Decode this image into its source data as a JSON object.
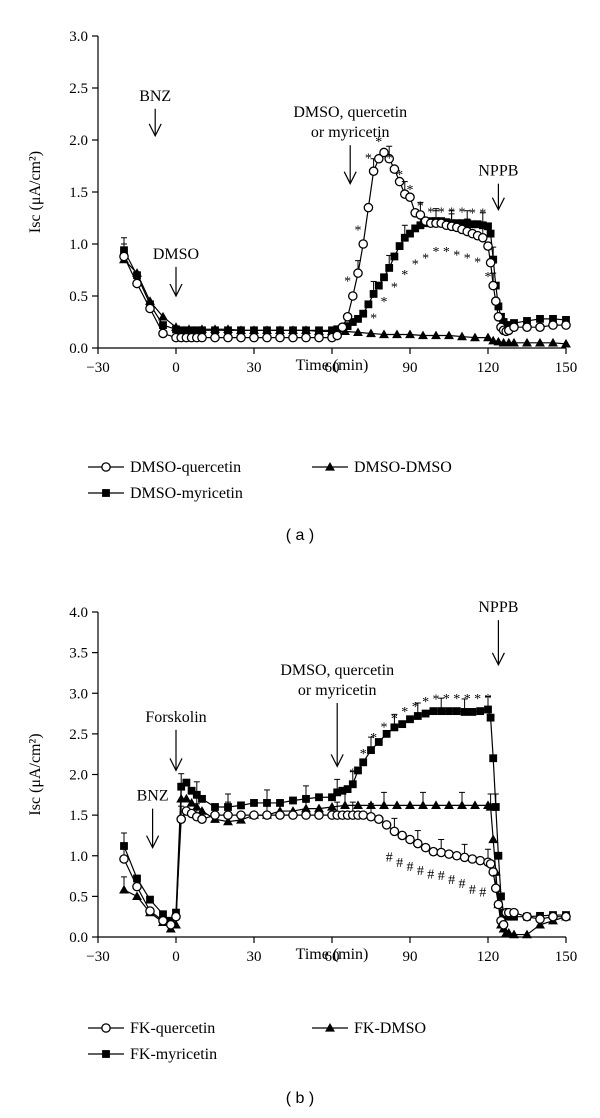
{
  "chart_data": [
    {
      "type": "line",
      "panel_label": "( a )",
      "xlabel": "Time (min)",
      "ylabel": "Isc (μA/cm²)",
      "xlim": [
        -30,
        150
      ],
      "ylim": [
        0,
        3
      ],
      "xticks": [
        -30,
        0,
        30,
        60,
        90,
        120,
        150
      ],
      "xtick_labels": [
        "−30",
        "0",
        "30",
        "60",
        "90",
        "120",
        "150"
      ],
      "yticks": [
        0,
        0.5,
        1,
        1.5,
        2,
        2.5,
        3
      ],
      "ytick_labels": [
        "0.0",
        "0.5",
        "1.0",
        "1.5",
        "2.0",
        "2.5",
        "3.0"
      ],
      "annotations": [
        {
          "lines": [
            "BNZ"
          ],
          "x": -8,
          "arrow_from": 2.3,
          "arrow_to": 2.04
        },
        {
          "lines": [
            "DMSO"
          ],
          "x": 0,
          "arrow_from": 0.78,
          "arrow_to": 0.5
        },
        {
          "lines": [
            "DMSO, quercetin",
            "or myricetin"
          ],
          "x": 67,
          "arrow_from": 1.95,
          "arrow_to": 1.58
        },
        {
          "lines": [
            "NPPB"
          ],
          "x": 124,
          "arrow_from": 1.58,
          "arrow_to": 1.33
        }
      ],
      "legend": [
        {
          "label": "DMSO-quercetin",
          "marker": "circle-open"
        },
        {
          "label": "DMSO-myricetin",
          "marker": "square-filled"
        },
        {
          "label": "DMSO-DMSO",
          "marker": "triangle-filled"
        }
      ],
      "legend_position": "bottom",
      "series": [
        {
          "marker": "circle-open",
          "x": [
            -20,
            -15,
            -10,
            -5,
            0,
            2,
            4,
            6,
            8,
            10,
            15,
            20,
            25,
            30,
            35,
            40,
            45,
            50,
            55,
            60,
            62,
            64,
            66,
            68,
            70,
            72,
            74,
            76,
            78,
            80,
            82,
            84,
            86,
            88,
            90,
            92,
            94,
            96,
            98,
            100,
            102,
            104,
            106,
            108,
            110,
            112,
            114,
            116,
            118,
            120,
            121,
            122,
            123,
            124,
            125,
            126,
            127,
            128,
            130,
            135,
            140,
            145,
            150
          ],
          "y": [
            0.88,
            0.62,
            0.38,
            0.14,
            0.1,
            0.1,
            0.1,
            0.1,
            0.1,
            0.1,
            0.1,
            0.1,
            0.1,
            0.1,
            0.1,
            0.1,
            0.1,
            0.1,
            0.1,
            0.1,
            0.12,
            0.2,
            0.3,
            0.5,
            0.72,
            1.0,
            1.35,
            1.7,
            1.82,
            1.88,
            1.82,
            1.72,
            1.6,
            1.48,
            1.45,
            1.3,
            1.28,
            1.22,
            1.2,
            1.2,
            1.2,
            1.18,
            1.17,
            1.16,
            1.14,
            1.12,
            1.1,
            1.08,
            1.06,
            0.98,
            0.82,
            0.6,
            0.45,
            0.3,
            0.2,
            0.17,
            0.16,
            0.17,
            0.2,
            0.2,
            0.2,
            0.22,
            0.22
          ]
        },
        {
          "marker": "square-filled",
          "x": [
            -20,
            -15,
            -10,
            -5,
            0,
            2,
            4,
            6,
            8,
            10,
            15,
            20,
            25,
            30,
            35,
            40,
            45,
            50,
            55,
            60,
            62,
            64,
            66,
            68,
            70,
            72,
            74,
            76,
            78,
            80,
            82,
            84,
            86,
            88,
            90,
            92,
            94,
            96,
            98,
            100,
            102,
            104,
            106,
            108,
            110,
            112,
            114,
            116,
            118,
            120,
            121,
            122,
            123,
            124,
            125,
            126,
            127,
            128,
            130,
            135,
            140,
            145,
            150
          ],
          "y": [
            0.94,
            0.7,
            0.42,
            0.22,
            0.18,
            0.17,
            0.17,
            0.17,
            0.17,
            0.17,
            0.17,
            0.17,
            0.17,
            0.17,
            0.17,
            0.17,
            0.17,
            0.17,
            0.17,
            0.17,
            0.18,
            0.19,
            0.21,
            0.25,
            0.28,
            0.33,
            0.42,
            0.52,
            0.6,
            0.68,
            0.77,
            0.88,
            0.98,
            1.06,
            1.1,
            1.15,
            1.18,
            1.2,
            1.22,
            1.22,
            1.22,
            1.21,
            1.2,
            1.2,
            1.2,
            1.2,
            1.19,
            1.19,
            1.18,
            1.17,
            1.1,
            0.85,
            0.6,
            0.4,
            0.3,
            0.25,
            0.22,
            0.22,
            0.24,
            0.26,
            0.28,
            0.28,
            0.27
          ]
        },
        {
          "marker": "triangle-filled",
          "x": [
            -20,
            -15,
            -10,
            -5,
            0,
            5,
            10,
            15,
            20,
            25,
            30,
            35,
            40,
            45,
            50,
            55,
            60,
            65,
            70,
            75,
            80,
            85,
            90,
            95,
            100,
            105,
            110,
            115,
            120,
            122,
            124,
            126,
            128,
            130,
            135,
            140,
            145,
            150
          ],
          "y": [
            0.85,
            0.72,
            0.45,
            0.3,
            0.2,
            0.18,
            0.18,
            0.18,
            0.18,
            0.17,
            0.17,
            0.17,
            0.17,
            0.17,
            0.17,
            0.16,
            0.16,
            0.16,
            0.15,
            0.14,
            0.13,
            0.13,
            0.13,
            0.12,
            0.12,
            0.12,
            0.11,
            0.1,
            0.1,
            0.07,
            0.06,
            0.05,
            0.05,
            0.05,
            0.05,
            0.05,
            0.05,
            0.04
          ]
        }
      ],
      "marks": [
        {
          "text": "*",
          "x": 66,
          "y": 0.68
        },
        {
          "text": "*",
          "x": 70,
          "y": 1.17
        },
        {
          "text": "*",
          "x": 74,
          "y": 1.86
        },
        {
          "text": "*",
          "x": 78,
          "y": 2.02
        },
        {
          "text": "*",
          "x": 82,
          "y": 1.86
        },
        {
          "text": "*",
          "x": 86,
          "y": 1.7
        },
        {
          "text": "*",
          "x": 90,
          "y": 1.56
        },
        {
          "text": "*",
          "x": 94,
          "y": 1.4
        },
        {
          "text": "*",
          "x": 98,
          "y": 1.34
        },
        {
          "text": "*",
          "x": 102,
          "y": 1.34
        },
        {
          "text": "*",
          "x": 106,
          "y": 1.34
        },
        {
          "text": "*",
          "x": 110,
          "y": 1.34
        },
        {
          "text": "*",
          "x": 114,
          "y": 1.33
        },
        {
          "text": "*",
          "x": 118,
          "y": 1.33
        },
        {
          "text": "*",
          "x": 76,
          "y": 0.32
        },
        {
          "text": "*",
          "x": 80,
          "y": 0.48
        },
        {
          "text": "*",
          "x": 84,
          "y": 0.62
        },
        {
          "text": "*",
          "x": 88,
          "y": 0.74
        },
        {
          "text": "*",
          "x": 92,
          "y": 0.84
        },
        {
          "text": "*",
          "x": 96,
          "y": 0.9
        },
        {
          "text": "*",
          "x": 100,
          "y": 0.96
        },
        {
          "text": "*",
          "x": 104,
          "y": 0.96
        },
        {
          "text": "*",
          "x": 108,
          "y": 0.93
        },
        {
          "text": "*",
          "x": 112,
          "y": 0.9
        },
        {
          "text": "*",
          "x": 116,
          "y": 0.86
        },
        {
          "text": "*",
          "x": 120,
          "y": 0.72
        }
      ]
    },
    {
      "type": "line",
      "panel_label": "( b )",
      "xlabel": "Time (min)",
      "ylabel": "Isc (μA/cm²)",
      "xlim": [
        -30,
        150
      ],
      "ylim": [
        0,
        4
      ],
      "xticks": [
        -30,
        0,
        30,
        60,
        90,
        120,
        150
      ],
      "xtick_labels": [
        "−30",
        "0",
        "30",
        "60",
        "90",
        "120",
        "150"
      ],
      "yticks": [
        0,
        0.5,
        1,
        1.5,
        2,
        2.5,
        3,
        3.5,
        4
      ],
      "ytick_labels": [
        "0.0",
        "0.5",
        "1.0",
        "1.5",
        "2.0",
        "2.5",
        "3.0",
        "3.5",
        "4.0"
      ],
      "annotations": [
        {
          "lines": [
            "Forskolin"
          ],
          "x": 0,
          "arrow_from": 2.55,
          "arrow_to": 2.05
        },
        {
          "lines": [
            "BNZ"
          ],
          "x": -9,
          "arrow_from": 1.58,
          "arrow_to": 1.1
        },
        {
          "lines": [
            "DMSO, quercetin",
            "or myricetin"
          ],
          "x": 62,
          "arrow_from": 2.88,
          "arrow_to": 2.1
        },
        {
          "lines": [
            "NPPB"
          ],
          "x": 124,
          "arrow_from": 3.9,
          "arrow_to": 3.35
        }
      ],
      "legend": [
        {
          "label": "FK-quercetin",
          "marker": "circle-open"
        },
        {
          "label": "FK-myricetin",
          "marker": "square-filled"
        },
        {
          "label": "FK-DMSO",
          "marker": "triangle-filled"
        }
      ],
      "legend_position": "bottom",
      "series": [
        {
          "marker": "circle-open",
          "x": [
            -20,
            -15,
            -10,
            -5,
            -2,
            0,
            2,
            4,
            6,
            8,
            10,
            15,
            20,
            25,
            30,
            35,
            40,
            45,
            50,
            55,
            60,
            62,
            64,
            66,
            68,
            70,
            72,
            75,
            78,
            81,
            84,
            87,
            90,
            93,
            96,
            99,
            102,
            105,
            108,
            111,
            114,
            117,
            120,
            121,
            122,
            123,
            124,
            125,
            126,
            127,
            128,
            130,
            135,
            140,
            145,
            150
          ],
          "y": [
            0.96,
            0.62,
            0.32,
            0.2,
            0.15,
            0.25,
            1.45,
            1.55,
            1.52,
            1.48,
            1.45,
            1.5,
            1.5,
            1.5,
            1.5,
            1.5,
            1.5,
            1.5,
            1.5,
            1.5,
            1.5,
            1.5,
            1.5,
            1.5,
            1.5,
            1.5,
            1.5,
            1.48,
            1.45,
            1.38,
            1.3,
            1.25,
            1.2,
            1.15,
            1.1,
            1.05,
            1.04,
            1.02,
            1.0,
            0.98,
            0.96,
            0.94,
            0.92,
            0.9,
            0.8,
            0.6,
            0.4,
            0.2,
            0.15,
            0.3,
            0.3,
            0.3,
            0.25,
            0.22,
            0.25,
            0.25
          ]
        },
        {
          "marker": "square-filled",
          "x": [
            -20,
            -15,
            -10,
            -5,
            -2,
            0,
            2,
            4,
            6,
            8,
            10,
            15,
            20,
            25,
            30,
            35,
            40,
            45,
            50,
            55,
            60,
            62,
            64,
            66,
            68,
            70,
            72,
            75,
            78,
            81,
            84,
            87,
            90,
            93,
            96,
            99,
            102,
            105,
            108,
            111,
            114,
            117,
            120,
            121,
            122,
            123,
            124,
            125,
            126,
            127,
            128,
            130,
            135,
            140,
            145,
            150
          ],
          "y": [
            1.12,
            0.72,
            0.46,
            0.28,
            0.2,
            0.3,
            1.85,
            1.9,
            1.8,
            1.75,
            1.7,
            1.6,
            1.6,
            1.62,
            1.65,
            1.65,
            1.65,
            1.68,
            1.7,
            1.72,
            1.72,
            1.78,
            1.8,
            1.82,
            1.88,
            2.05,
            2.15,
            2.3,
            2.4,
            2.5,
            2.58,
            2.62,
            2.68,
            2.72,
            2.75,
            2.78,
            2.78,
            2.78,
            2.78,
            2.77,
            2.77,
            2.78,
            2.8,
            2.7,
            2.2,
            1.6,
            1.0,
            0.5,
            0.3,
            0.28,
            0.25,
            0.25,
            0.25,
            0.26,
            0.27,
            0.27
          ]
        },
        {
          "marker": "triangle-filled",
          "x": [
            -20,
            -15,
            -10,
            -5,
            -2,
            0,
            2,
            4,
            6,
            8,
            10,
            15,
            20,
            25,
            30,
            35,
            40,
            45,
            50,
            55,
            60,
            65,
            70,
            75,
            80,
            85,
            90,
            95,
            100,
            105,
            110,
            115,
            120,
            121,
            122,
            123,
            124,
            125,
            126,
            127,
            128,
            130,
            135,
            140,
            145,
            150
          ],
          "y": [
            0.58,
            0.5,
            0.3,
            0.18,
            0.1,
            0.15,
            1.7,
            1.7,
            1.65,
            1.6,
            1.55,
            1.45,
            1.42,
            1.44,
            1.5,
            1.5,
            1.55,
            1.55,
            1.58,
            1.58,
            1.6,
            1.62,
            1.62,
            1.62,
            1.62,
            1.62,
            1.62,
            1.62,
            1.62,
            1.62,
            1.62,
            1.62,
            1.62,
            1.6,
            1.2,
            0.8,
            0.4,
            0.15,
            0.1,
            0.05,
            0.05,
            0.03,
            0.03,
            0.15,
            0.2,
            0.25
          ]
        }
      ],
      "marks": [
        {
          "text": "*",
          "x": 68,
          "y": 2.06
        },
        {
          "text": "*",
          "x": 72,
          "y": 2.3
        },
        {
          "text": "*",
          "x": 76,
          "y": 2.5
        },
        {
          "text": "*",
          "x": 80,
          "y": 2.63
        },
        {
          "text": "*",
          "x": 84,
          "y": 2.73
        },
        {
          "text": "*",
          "x": 88,
          "y": 2.82
        },
        {
          "text": "*",
          "x": 92,
          "y": 2.88
        },
        {
          "text": "*",
          "x": 96,
          "y": 2.94
        },
        {
          "text": "*",
          "x": 100,
          "y": 2.97
        },
        {
          "text": "*",
          "x": 104,
          "y": 2.98
        },
        {
          "text": "*",
          "x": 108,
          "y": 2.98
        },
        {
          "text": "*",
          "x": 112,
          "y": 2.98
        },
        {
          "text": "*",
          "x": 116,
          "y": 2.98
        },
        {
          "text": "*",
          "x": 120,
          "y": 2.98
        },
        {
          "text": "#",
          "x": 82,
          "y": 1.03
        },
        {
          "text": "#",
          "x": 86,
          "y": 0.96
        },
        {
          "text": "#",
          "x": 90,
          "y": 0.91
        },
        {
          "text": "#",
          "x": 94,
          "y": 0.86
        },
        {
          "text": "#",
          "x": 98,
          "y": 0.82
        },
        {
          "text": "#",
          "x": 102,
          "y": 0.8
        },
        {
          "text": "#",
          "x": 106,
          "y": 0.75
        },
        {
          "text": "#",
          "x": 110,
          "y": 0.7
        },
        {
          "text": "#",
          "x": 114,
          "y": 0.63
        },
        {
          "text": "#",
          "x": 118,
          "y": 0.6
        }
      ]
    }
  ]
}
